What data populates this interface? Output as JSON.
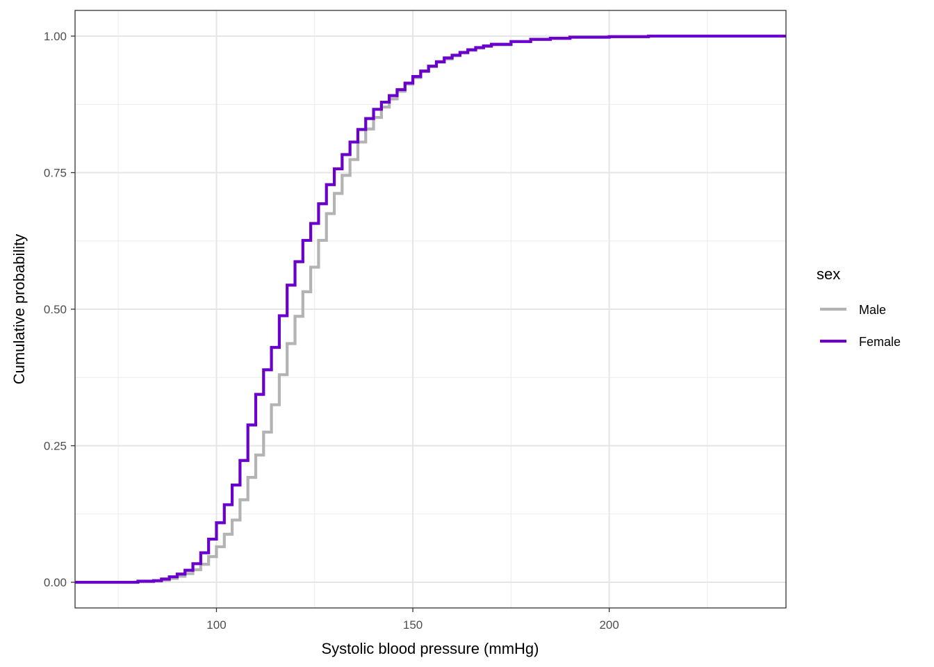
{
  "chart_data": {
    "type": "line",
    "subtype": "step-ecdf",
    "xlabel": "Systolic blood pressure (mmHg)",
    "ylabel": "Cumulative probability",
    "xlim": [
      64,
      245
    ],
    "ylim": [
      -0.047,
      1.047
    ],
    "x_ticks": [
      {
        "value": 100,
        "label": "100"
      },
      {
        "value": 150,
        "label": "150"
      },
      {
        "value": 200,
        "label": "200"
      }
    ],
    "x_minor_ticks": [
      75,
      125,
      175,
      225
    ],
    "y_ticks": [
      {
        "value": 0,
        "label": "0.00"
      },
      {
        "value": 0.25,
        "label": "0.25"
      },
      {
        "value": 0.5,
        "label": "0.50"
      },
      {
        "value": 0.75,
        "label": "0.75"
      },
      {
        "value": 1,
        "label": "1.00"
      }
    ],
    "y_minor_ticks": [
      0.125,
      0.375,
      0.625,
      0.875
    ],
    "grid": true,
    "legend": {
      "title": "sex",
      "position": "right",
      "entries": [
        "Male",
        "Female"
      ]
    },
    "series": [
      {
        "name": "Male",
        "color": "#b3b3b3",
        "x": [
          64,
          72,
          80,
          84,
          86,
          88,
          90,
          92,
          94,
          96,
          98,
          100,
          102,
          104,
          106,
          108,
          110,
          112,
          114,
          116,
          118,
          120,
          122,
          124,
          126,
          128,
          130,
          132,
          134,
          136,
          138,
          140,
          142,
          144,
          146,
          148,
          150,
          152,
          154,
          156,
          158,
          160,
          162,
          164,
          166,
          168,
          170,
          175,
          180,
          185,
          190,
          200,
          210,
          245
        ],
        "y": [
          0.0,
          0.0,
          0.001,
          0.002,
          0.004,
          0.007,
          0.011,
          0.016,
          0.023,
          0.033,
          0.047,
          0.065,
          0.088,
          0.114,
          0.151,
          0.192,
          0.233,
          0.275,
          0.325,
          0.38,
          0.437,
          0.487,
          0.532,
          0.577,
          0.626,
          0.675,
          0.712,
          0.745,
          0.774,
          0.806,
          0.83,
          0.851,
          0.87,
          0.885,
          0.899,
          0.912,
          0.924,
          0.935,
          0.944,
          0.952,
          0.958,
          0.964,
          0.969,
          0.974,
          0.978,
          0.981,
          0.984,
          0.99,
          0.994,
          0.996,
          0.998,
          0.999,
          1.0,
          1.0
        ]
      },
      {
        "name": "Female",
        "color": "#6a00cc",
        "x": [
          64,
          72,
          80,
          84,
          86,
          88,
          90,
          92,
          94,
          96,
          98,
          100,
          102,
          104,
          106,
          108,
          110,
          112,
          114,
          116,
          118,
          120,
          122,
          124,
          126,
          128,
          130,
          132,
          134,
          136,
          138,
          140,
          142,
          144,
          146,
          148,
          150,
          152,
          154,
          156,
          158,
          160,
          162,
          164,
          166,
          168,
          170,
          175,
          180,
          185,
          190,
          200,
          210,
          245
        ],
        "y": [
          0.0,
          0.0,
          0.002,
          0.003,
          0.006,
          0.01,
          0.015,
          0.022,
          0.034,
          0.054,
          0.079,
          0.109,
          0.142,
          0.178,
          0.223,
          0.288,
          0.344,
          0.389,
          0.43,
          0.488,
          0.544,
          0.587,
          0.626,
          0.657,
          0.693,
          0.728,
          0.757,
          0.783,
          0.806,
          0.829,
          0.849,
          0.866,
          0.879,
          0.891,
          0.902,
          0.914,
          0.926,
          0.936,
          0.945,
          0.953,
          0.96,
          0.965,
          0.97,
          0.975,
          0.979,
          0.982,
          0.985,
          0.99,
          0.994,
          0.996,
          0.998,
          0.999,
          1.0,
          1.0
        ]
      }
    ]
  }
}
